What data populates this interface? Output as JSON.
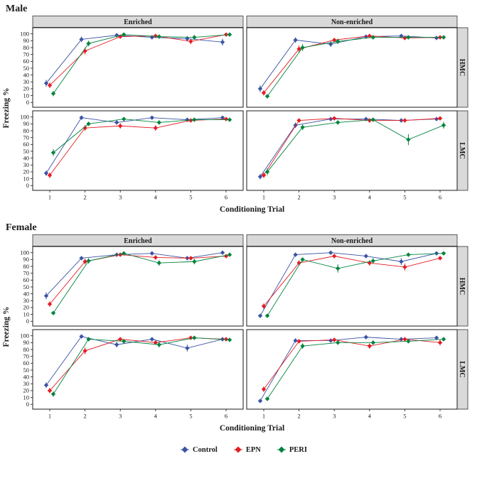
{
  "chart_data": {
    "type": "line",
    "xlabel": "Conditioning Trial",
    "ylabel": "Freezing %",
    "x": [
      1,
      2,
      3,
      4,
      5,
      6
    ],
    "y_ticks": [
      0,
      10,
      20,
      30,
      40,
      50,
      60,
      70,
      80,
      90,
      100
    ],
    "ylim": [
      0,
      100
    ],
    "grid": false,
    "legend_position": "bottom",
    "series_colors": {
      "Control": "#3a53a4",
      "EPN": "#e41c24",
      "PERI": "#00843d"
    },
    "dodge": {
      "Control": -5,
      "EPN": 0,
      "PERI": 5
    },
    "legend": [
      {
        "label": "Control",
        "color": "#3a53a4"
      },
      {
        "label": "EPN",
        "color": "#e41c24"
      },
      {
        "label": "PERI",
        "color": "#00843d"
      }
    ],
    "sections": [
      {
        "title": "Male",
        "col_labels": [
          "Enriched",
          "Non-enriched"
        ],
        "row_labels": [
          "HMC",
          "LMC"
        ],
        "panels": [
          {
            "col": "Enriched",
            "row": "HMC",
            "series": [
              {
                "name": "Control",
                "values": [
                  28,
                  92,
                  98,
                  95,
                  93,
                  88
                ],
                "errors": [
                  5,
                  4,
                  2,
                  3,
                  4,
                  5
                ]
              },
              {
                "name": "EPN",
                "values": [
                  25,
                  75,
                  96,
                  97,
                  89,
                  99
                ],
                "errors": [
                  4,
                  5,
                  3,
                  2,
                  4,
                  2
                ]
              },
              {
                "name": "PERI",
                "values": [
                  13,
                  86,
                  99,
                  96,
                  95,
                  99
                ],
                "errors": [
                  4,
                  4,
                  2,
                  3,
                  3,
                  2
                ]
              }
            ]
          },
          {
            "col": "Non-enriched",
            "row": "HMC",
            "series": [
              {
                "name": "Control",
                "values": [
                  20,
                  91,
                  85,
                  96,
                  97,
                  94
                ],
                "errors": [
                  5,
                  4,
                  4,
                  2,
                  2,
                  3
                ]
              },
              {
                "name": "EPN",
                "values": [
                  14,
                  78,
                  91,
                  97,
                  94,
                  95
                ],
                "errors": [
                  4,
                  5,
                  3,
                  2,
                  3,
                  3
                ]
              },
              {
                "name": "PERI",
                "values": [
                  9,
                  80,
                  89,
                  95,
                  95,
                  95
                ],
                "errors": [
                  3,
                  5,
                  4,
                  3,
                  3,
                  3
                ]
              }
            ]
          },
          {
            "col": "Enriched",
            "row": "LMC",
            "series": [
              {
                "name": "Control",
                "values": [
                  18,
                  99,
                  92,
                  99,
                  96,
                  99
                ],
                "errors": [
                  4,
                  1,
                  3,
                  1,
                  2,
                  1
                ]
              },
              {
                "name": "EPN",
                "values": [
                  15,
                  84,
                  87,
                  84,
                  95,
                  97
                ],
                "errors": [
                  4,
                  4,
                  4,
                  4,
                  3,
                  2
                ]
              },
              {
                "name": "PERI",
                "values": [
                  48,
                  90,
                  97,
                  92,
                  96,
                  96
                ],
                "errors": [
                  5,
                  3,
                  2,
                  3,
                  2,
                  2
                ]
              }
            ]
          },
          {
            "col": "Non-enriched",
            "row": "LMC",
            "series": [
              {
                "name": "Control",
                "values": [
                  13,
                  88,
                  97,
                  97,
                  95,
                  97
                ],
                "errors": [
                  4,
                  4,
                  2,
                  2,
                  3,
                  2
                ]
              },
              {
                "name": "EPN",
                "values": [
                  15,
                  95,
                  98,
                  95,
                  95,
                  98
                ],
                "errors": [
                  4,
                  3,
                  2,
                  3,
                  3,
                  2
                ]
              },
              {
                "name": "PERI",
                "values": [
                  20,
                  85,
                  92,
                  96,
                  67,
                  88
                ],
                "errors": [
                  5,
                  4,
                  3,
                  3,
                  8,
                  5
                ]
              }
            ]
          }
        ]
      },
      {
        "title": "Female",
        "col_labels": [
          "Enriched",
          "Non-enriched"
        ],
        "row_labels": [
          "HMC",
          "LMC"
        ],
        "panels": [
          {
            "col": "Enriched",
            "row": "HMC",
            "series": [
              {
                "name": "Control",
                "values": [
                  37,
                  92,
                  97,
                  99,
                  92,
                  100
                ],
                "errors": [
                  5,
                  3,
                  2,
                  1,
                  3,
                  1
                ]
              },
              {
                "name": "EPN",
                "values": [
                  25,
                  87,
                  97,
                  93,
                  92,
                  95
                ],
                "errors": [
                  4,
                  4,
                  2,
                  3,
                  3,
                  3
                ]
              },
              {
                "name": "PERI",
                "values": [
                  12,
                  88,
                  99,
                  85,
                  87,
                  97
                ],
                "errors": [
                  3,
                  4,
                  1,
                  4,
                  4,
                  2
                ]
              }
            ]
          },
          {
            "col": "Non-enriched",
            "row": "HMC",
            "series": [
              {
                "name": "Control",
                "values": [
                  8,
                  97,
                  100,
                  95,
                  87,
                  99
                ],
                "errors": [
                  3,
                  2,
                  1,
                  3,
                  5,
                  1
                ]
              },
              {
                "name": "EPN",
                "values": [
                  22,
                  85,
                  95,
                  85,
                  79,
                  92
                ],
                "errors": [
                  4,
                  4,
                  3,
                  4,
                  5,
                  3
                ]
              },
              {
                "name": "PERI",
                "values": [
                  8,
                  90,
                  77,
                  88,
                  97,
                  99
                ],
                "errors": [
                  3,
                  3,
                  6,
                  4,
                  2,
                  1
                ]
              }
            ]
          },
          {
            "col": "Enriched",
            "row": "LMC",
            "series": [
              {
                "name": "Control",
                "values": [
                  28,
                  99,
                  87,
                  95,
                  82,
                  95
                ],
                "errors": [
                  4,
                  1,
                  4,
                  3,
                  5,
                  3
                ]
              },
              {
                "name": "EPN",
                "values": [
                  20,
                  78,
                  95,
                  90,
                  97,
                  95
                ],
                "errors": [
                  4,
                  5,
                  3,
                  3,
                  2,
                  3
                ]
              },
              {
                "name": "PERI",
                "values": [
                  15,
                  95,
                  92,
                  87,
                  97,
                  94
                ],
                "errors": [
                  4,
                  3,
                  3,
                  4,
                  2,
                  3
                ]
              }
            ]
          },
          {
            "col": "Non-enriched",
            "row": "LMC",
            "series": [
              {
                "name": "Control",
                "values": [
                  5,
                  93,
                  93,
                  98,
                  95,
                  97
                ],
                "errors": [
                  2,
                  3,
                  3,
                  1,
                  3,
                  2
                ]
              },
              {
                "name": "EPN",
                "values": [
                  22,
                  92,
                  94,
                  85,
                  95,
                  90
                ],
                "errors": [
                  4,
                  3,
                  3,
                  4,
                  3,
                  4
                ]
              },
              {
                "name": "PERI",
                "values": [
                  8,
                  85,
                  90,
                  90,
                  92,
                  95
                ],
                "errors": [
                  3,
                  4,
                  3,
                  3,
                  3,
                  3
                ]
              }
            ]
          }
        ]
      }
    ]
  }
}
